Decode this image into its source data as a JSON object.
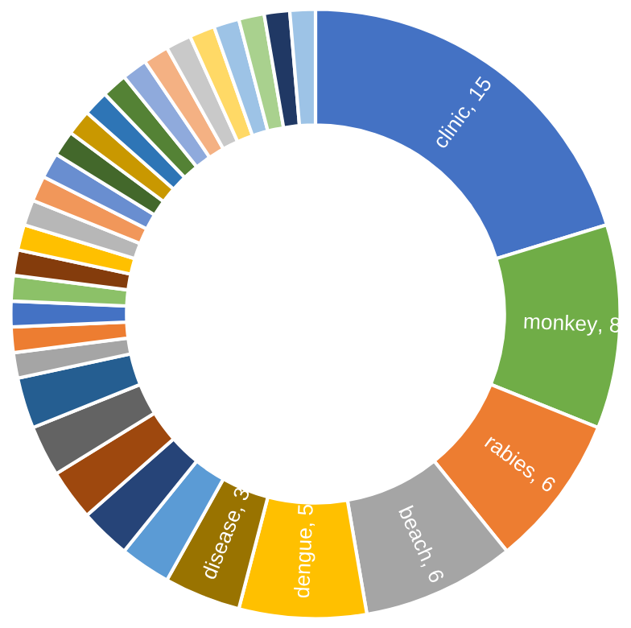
{
  "chart_data": {
    "type": "donut",
    "categories": [
      "clinic",
      "monkey",
      "rabies",
      "beach",
      "dengue",
      "disease",
      null,
      null,
      null,
      null,
      null,
      null,
      null,
      null,
      null,
      null,
      null,
      null,
      null,
      null,
      null,
      null,
      null,
      null,
      null,
      null,
      null,
      null,
      null,
      null,
      null,
      null
    ],
    "values": [
      15,
      8,
      6,
      6,
      5,
      3,
      2,
      2,
      2,
      2,
      2,
      1,
      1,
      1,
      1,
      1,
      1,
      1,
      1,
      1,
      1,
      1,
      1,
      1,
      1,
      1,
      1,
      1,
      1,
      1,
      1,
      1
    ],
    "colors": [
      "#4472c4",
      "#70ad47",
      "#ed7d31",
      "#a5a5a5",
      "#ffc000",
      "#997300",
      "#5b9bd5",
      "#264478",
      "#9e480e",
      "#636363",
      "#255e91",
      "#a5a5a5",
      "#ed7d31",
      "#4472c4",
      "#8cc168",
      "#843c0c",
      "#ffc000",
      "#b7b7b7",
      "#f1975a",
      "#698ed0",
      "#43682b",
      "#c99800",
      "#2e75b6",
      "#548235",
      "#8faadc",
      "#f4b183",
      "#c9c9c9",
      "#ffd966",
      "#9dc3e6",
      "#a9d18e",
      "#203864",
      "#9dc3e6"
    ],
    "value_labels": [
      ", 15",
      ", 8",
      ", 6",
      ", 6",
      ", 5",
      ", 3",
      null,
      null,
      null,
      null,
      null,
      null,
      null,
      null,
      null,
      null,
      null,
      null,
      null,
      null,
      null,
      null,
      null,
      null,
      null,
      null,
      null,
      null,
      null,
      null,
      null,
      null
    ]
  }
}
